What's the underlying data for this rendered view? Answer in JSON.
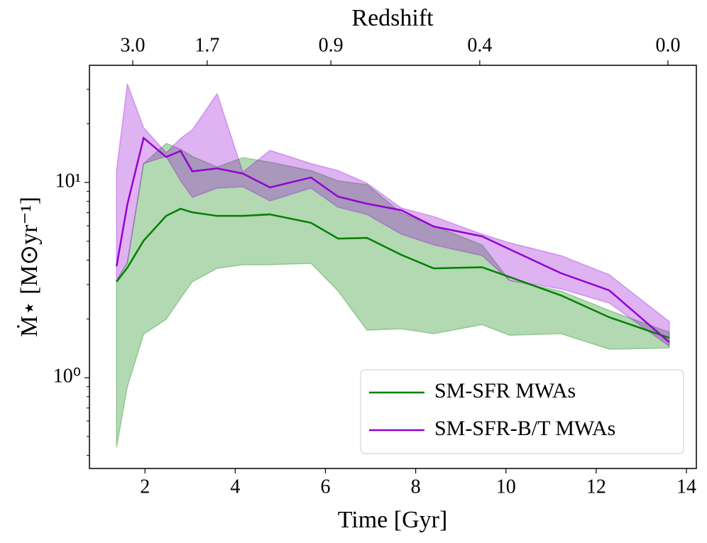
{
  "chart_data": {
    "type": "line",
    "xlabel": "Time [Gyr]",
    "ylabel": "Ṁ⋆ [M⊙yr⁻¹]",
    "x2label": "Redshift",
    "x": [
      1.37,
      1.61,
      1.97,
      2.47,
      2.79,
      3.05,
      3.6,
      4.17,
      4.77,
      5.68,
      6.28,
      6.92,
      7.68,
      8.4,
      9.47,
      10.08,
      11.22,
      12.29,
      13.62
    ],
    "series": [
      {
        "name": "SM-SFR MWAs",
        "color": "#008000",
        "values": [
          3.1,
          3.66,
          5.03,
          6.74,
          7.33,
          7.03,
          6.74,
          6.74,
          6.86,
          6.21,
          5.16,
          5.2,
          4.26,
          3.63,
          3.68,
          3.28,
          2.64,
          2.04,
          1.6
        ],
        "lower": [
          0.44,
          0.897,
          1.67,
          1.99,
          2.55,
          3.1,
          3.63,
          3.79,
          3.79,
          3.85,
          2.78,
          1.75,
          1.78,
          1.68,
          1.87,
          1.65,
          1.68,
          1.4,
          1.42
        ],
        "upper": [
          3.15,
          3.88,
          12.5,
          15.85,
          14.8,
          13.6,
          12.0,
          13.4,
          12.7,
          11.5,
          10.2,
          9.75,
          6.98,
          6.0,
          4.79,
          3.15,
          2.78,
          2.21,
          1.71
        ]
      },
      {
        "name": "SM-SFR-B/T MWAs",
        "color": "#9400d3",
        "values": [
          3.72,
          7.71,
          16.9,
          13.5,
          14.5,
          11.4,
          11.8,
          11.1,
          9.43,
          10.6,
          8.46,
          7.78,
          7.21,
          5.95,
          5.3,
          4.55,
          3.43,
          2.8,
          1.52
        ],
        "lower": [
          3.15,
          3.88,
          12.5,
          13.6,
          10.2,
          8.39,
          9.35,
          9.5,
          8.04,
          9.35,
          7.46,
          6.86,
          5.43,
          4.79,
          4.22,
          3.15,
          2.85,
          2.41,
          1.45
        ],
        "upper": [
          11.5,
          32.0,
          19.1,
          14.2,
          16.8,
          18.6,
          28.5,
          11.3,
          14.6,
          12.5,
          11.5,
          9.92,
          7.4,
          6.69,
          5.43,
          4.91,
          4.22,
          3.37,
          1.94
        ]
      }
    ],
    "xlim": [
      0.77,
      14.22
    ],
    "xticks": [
      2,
      4,
      6,
      8,
      10,
      12,
      14
    ],
    "x2ticks": [
      {
        "value": 1.73,
        "label": "3.0"
      },
      {
        "value": 3.38,
        "label": "1.7"
      },
      {
        "value": 6.12,
        "label": "0.9"
      },
      {
        "value": 9.42,
        "label": "0.4"
      },
      {
        "value": 13.59,
        "label": "0.0"
      }
    ],
    "ylim": [
      0.343,
      39.8
    ],
    "ylog": true,
    "yticks": [
      {
        "value": 1,
        "label": "10⁰"
      },
      {
        "value": 10,
        "label": "10¹"
      }
    ],
    "yminorticks": [
      0.4,
      0.5,
      0.6,
      0.7,
      0.8,
      0.9,
      2,
      3,
      4,
      5,
      6,
      7,
      8,
      9,
      20,
      30
    ],
    "band_opacity": 0.3,
    "legend": "lower right"
  }
}
